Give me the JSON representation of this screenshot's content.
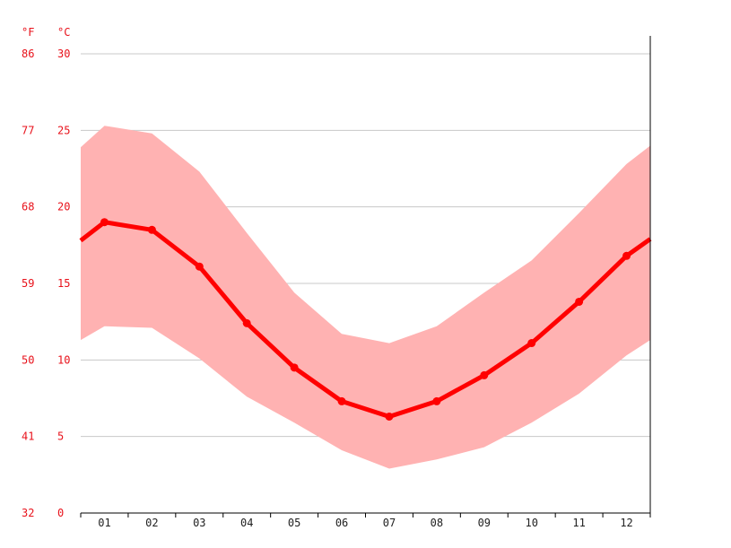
{
  "chart_data": {
    "type": "line",
    "title": "",
    "xlabel": "",
    "ylabel": "",
    "categories": [
      "01",
      "02",
      "03",
      "04",
      "05",
      "06",
      "07",
      "08",
      "09",
      "10",
      "11",
      "12"
    ],
    "series": [
      {
        "name": "",
        "kind": "mean-line",
        "values": [
          19.0,
          18.5,
          16.1,
          12.4,
          9.5,
          7.3,
          6.3,
          7.3,
          9.0,
          11.1,
          13.8,
          16.8
        ]
      },
      {
        "name": "",
        "kind": "band-max",
        "values": [
          25.3,
          24.8,
          22.3,
          18.3,
          14.4,
          11.7,
          11.1,
          12.2,
          14.4,
          16.5,
          19.6,
          22.8
        ]
      },
      {
        "name": "",
        "kind": "band-min",
        "values": [
          12.2,
          12.1,
          10.1,
          7.6,
          5.9,
          4.1,
          2.9,
          3.5,
          4.3,
          5.9,
          7.8,
          10.3
        ]
      }
    ],
    "edge_values": {
      "mean_start": 17.8,
      "mean_end": 17.9,
      "max_start": 23.9,
      "max_end": 24.0,
      "min_start": 11.3,
      "min_end": 11.3
    },
    "y_unit_c": "°C",
    "y_unit_f": "°F",
    "y_ticks_c": [
      "30",
      "25",
      "20",
      "15",
      "10",
      "5",
      "0"
    ],
    "y_ticks_f": [
      "86",
      "77",
      "68",
      "59",
      "50",
      "41",
      "32"
    ],
    "ylim": [
      0,
      30
    ],
    "grid": true,
    "colors": {
      "line": "#ff0000",
      "band": "#ffb2b2",
      "axis_text": "#e8121b",
      "grid": "#c8c8c8"
    }
  }
}
